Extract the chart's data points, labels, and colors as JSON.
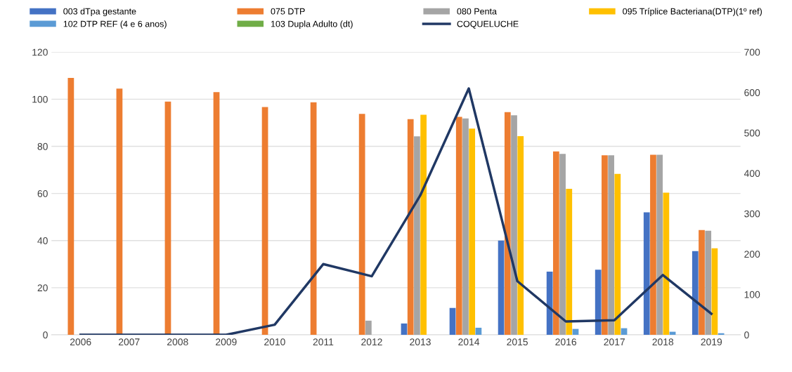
{
  "chart_data": {
    "type": "bar",
    "categories": [
      "2006",
      "2007",
      "2008",
      "2009",
      "2010",
      "2011",
      "2012",
      "2013",
      "2014",
      "2015",
      "2016",
      "2017",
      "2018",
      "2019"
    ],
    "series": [
      {
        "name": "003 dTpa gestante",
        "color": "#4472c4",
        "values": [
          null,
          null,
          null,
          null,
          null,
          null,
          null,
          4.8,
          11.4,
          40,
          26.8,
          27.6,
          52,
          35.5
        ]
      },
      {
        "name": "075 DTP",
        "color": "#ed7d31",
        "values": [
          109,
          104.5,
          99,
          103,
          96.7,
          98.7,
          93.8,
          91.5,
          92.5,
          94.5,
          77.8,
          76.2,
          76.4,
          44.5
        ]
      },
      {
        "name": "080 Penta",
        "color": "#a5a5a5",
        "values": [
          null,
          null,
          null,
          null,
          null,
          null,
          6,
          84.2,
          91.8,
          93.2,
          76.8,
          76.2,
          76.4,
          44.2
        ]
      },
      {
        "name": "095 Tríplice Bacteriana(DTP)(1º ref)",
        "color": "#ffc000",
        "values": [
          null,
          null,
          null,
          null,
          null,
          null,
          null,
          93.4,
          87.5,
          84.3,
          62,
          68.3,
          60.3,
          36.7
        ]
      },
      {
        "name": "102 DTP REF (4 e 6 anos)",
        "color": "#5b9bd5",
        "values": [
          null,
          null,
          null,
          null,
          null,
          null,
          null,
          null,
          3,
          null,
          2.5,
          2.8,
          1.3,
          0.7
        ]
      },
      {
        "name": "103 Dupla Adulto (dt)",
        "color": "#70ad47",
        "values": [
          null,
          null,
          null,
          null,
          null,
          null,
          null,
          null,
          null,
          null,
          null,
          null,
          null,
          null
        ]
      },
      {
        "name": "COQUELUCHE",
        "color": "#203864",
        "type": "line",
        "axis": "y2",
        "values": [
          0,
          0,
          0,
          0,
          25,
          175,
          145,
          345,
          610,
          133,
          33,
          36,
          148,
          52
        ]
      }
    ],
    "ylim": [
      0,
      120
    ],
    "yticks": [
      0,
      20,
      40,
      60,
      80,
      100,
      120
    ],
    "y2lim": [
      0,
      700
    ],
    "y2ticks": [
      0,
      100,
      200,
      300,
      400,
      500,
      600,
      700
    ],
    "grid": "y",
    "legend": "top",
    "marker": "none"
  }
}
